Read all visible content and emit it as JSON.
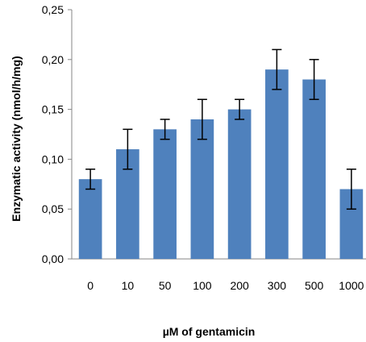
{
  "chart_data": {
    "type": "bar",
    "title": "",
    "xlabel": "µM of gentamicin",
    "ylabel": "Enzymatic activity (nmol/h/mg)",
    "categories": [
      "0",
      "10",
      "50",
      "100",
      "200",
      "300",
      "500",
      "1000"
    ],
    "values": [
      0.08,
      0.11,
      0.13,
      0.14,
      0.15,
      0.19,
      0.18,
      0.07
    ],
    "error_bars": [
      0.01,
      0.02,
      0.01,
      0.02,
      0.01,
      0.02,
      0.02,
      0.02
    ],
    "ylim": [
      0,
      0.25
    ],
    "yticks": [
      0,
      0.05,
      0.1,
      0.15,
      0.2,
      0.25
    ],
    "ytick_labels": [
      "0,00",
      "0,05",
      "0,10",
      "0,15",
      "0,20",
      "0,25"
    ],
    "grid": false,
    "legend": "none",
    "bar_color": "#4f81bd",
    "error_bar_color": "#000000"
  }
}
